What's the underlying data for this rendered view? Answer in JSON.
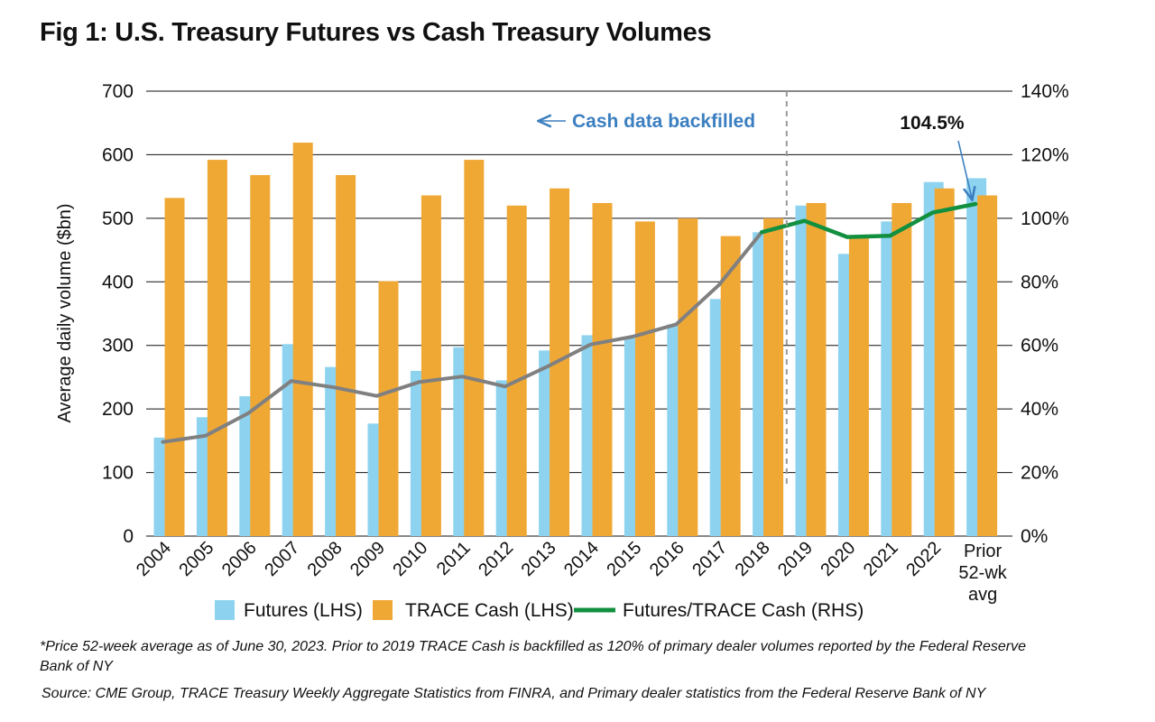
{
  "title": "Fig 1: U.S. Treasury Futures vs Cash Treasury Volumes",
  "footnote": "*Price 52-week average as of June 30, 2023. Prior to 2019 TRACE Cash is backfilled as 120% of primary dealer volumes reported by the Federal Reserve Bank of NY",
  "source": "Source: CME Group, TRACE Treasury Weekly Aggregate Statistics from FINRA, and Primary dealer statistics from the Federal Reserve Bank of NY",
  "colors": {
    "futures": "#8dd3ef",
    "cash": "#f0a835",
    "ratio_backfilled": "#808080",
    "ratio_actual": "#12903f",
    "annotation": "#3c7fc0",
    "grid": "#111111",
    "divider": "#9a9a9a"
  },
  "chart_data": {
    "type": "bar",
    "categories": [
      "2004",
      "2005",
      "2006",
      "2007",
      "2008",
      "2009",
      "2010",
      "2011",
      "2012",
      "2013",
      "2014",
      "2015",
      "2016",
      "2017",
      "2018",
      "2019",
      "2020",
      "2021",
      "2022",
      "Prior 52-wk avg"
    ],
    "series": [
      {
        "name": "Futures (LHS)",
        "type": "bar",
        "axis": "left",
        "values": [
          155,
          187,
          220,
          302,
          266,
          177,
          260,
          297,
          245,
          292,
          316,
          311,
          333,
          373,
          478,
          520,
          444,
          495,
          557,
          563
        ]
      },
      {
        "name": "TRACE Cash (LHS)",
        "type": "bar",
        "axis": "left",
        "values": [
          532,
          592,
          568,
          619,
          568,
          401,
          536,
          592,
          520,
          547,
          524,
          495,
          500,
          472,
          500,
          524,
          472,
          524,
          547,
          536
        ]
      },
      {
        "name": "Futures/TRACE Cash (RHS)",
        "type": "line",
        "axis": "right",
        "values": [
          29.6,
          31.6,
          38.7,
          48.8,
          46.8,
          44.1,
          48.5,
          50.2,
          47.1,
          53.4,
          60.3,
          62.8,
          66.6,
          79.0,
          95.6,
          99.2,
          94.1,
          94.5,
          101.8,
          104.5
        ]
      }
    ],
    "ylabel": "Average daily volume ($bn)",
    "ylim": [
      0,
      700
    ],
    "yticks": [
      "0",
      "100",
      "200",
      "300",
      "400",
      "500",
      "600",
      "700"
    ],
    "y2lim": [
      0,
      140
    ],
    "y2ticks": [
      "0%",
      "20%",
      "40%",
      "60%",
      "80%",
      "100%",
      "120%",
      "140%"
    ],
    "x_tick_labels": [
      "2004",
      "2005",
      "2006",
      "2007",
      "2008",
      "2009",
      "2010",
      "2011",
      "2012",
      "2013",
      "2014",
      "2015",
      "2016",
      "2017",
      "2018",
      "2019",
      "2020",
      "2021",
      "2022",
      "Prior\n52-wk\navg"
    ],
    "grid": "horizontal",
    "legend": {
      "position": "bottom",
      "entries": [
        "Futures (LHS)",
        "TRACE Cash (LHS)",
        "Futures/TRACE Cash (RHS)"
      ]
    },
    "annotations": {
      "backfill_note": "Cash data backfilled",
      "last_value_label": "104.5%"
    }
  }
}
